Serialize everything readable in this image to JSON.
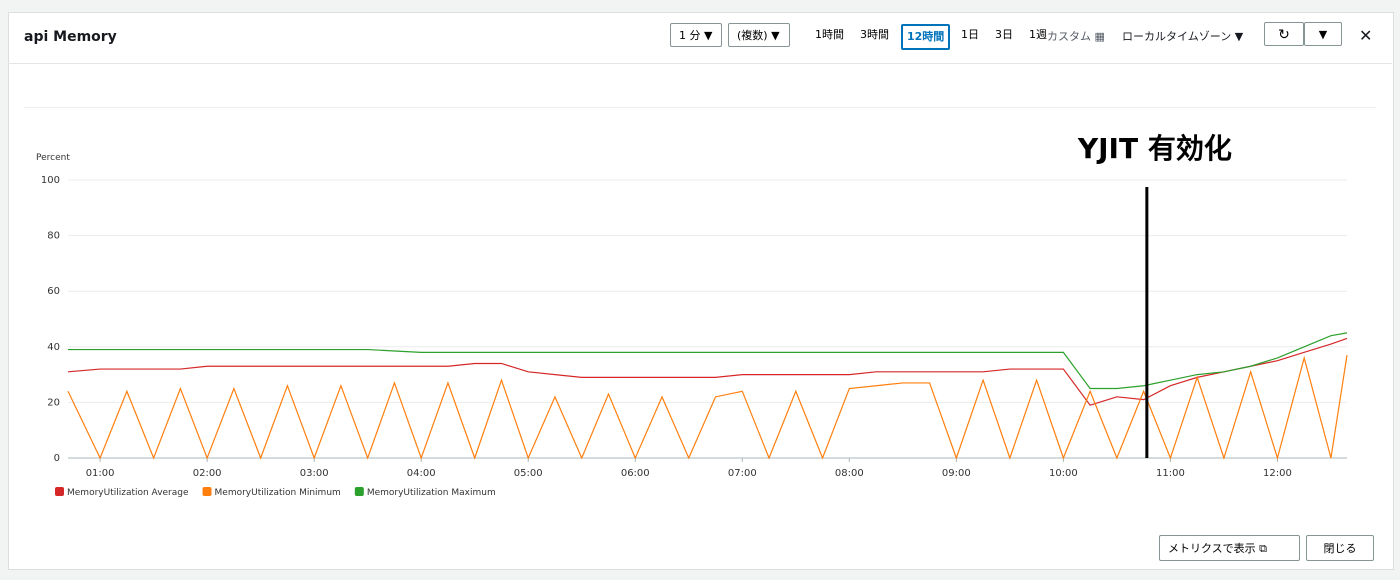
{
  "header": {
    "title": "api Memory"
  },
  "toolbar": {
    "period": "1 分",
    "stat": "(複数)",
    "ranges": [
      "1時間",
      "3時間",
      "12時間",
      "1日",
      "3日",
      "1週"
    ],
    "selected_range": 2,
    "custom": "カスタム",
    "timezone": "ローカルタイムゾーン"
  },
  "chart_data": {
    "type": "line",
    "y_label": "Percent",
    "x": [
      0.7,
      1.0,
      1.25,
      1.5,
      1.75,
      2.0,
      2.25,
      2.5,
      2.75,
      3.0,
      3.25,
      3.5,
      3.75,
      4.0,
      4.25,
      4.5,
      4.75,
      5.0,
      5.25,
      5.5,
      5.75,
      6.0,
      6.25,
      6.5,
      6.75,
      7.0,
      7.25,
      7.5,
      7.75,
      8.0,
      8.25,
      8.5,
      8.75,
      9.0,
      9.25,
      9.5,
      9.75,
      10.0,
      10.25,
      10.5,
      10.75,
      11.0,
      11.25,
      11.5,
      11.75,
      12.0,
      12.25,
      12.5,
      12.65
    ],
    "series": [
      {
        "name": "MemoryUtilization Average",
        "color": "#d62728",
        "values": [
          31,
          32,
          32,
          32,
          32,
          33,
          33,
          33,
          33,
          33,
          33,
          33,
          33,
          33,
          33,
          34,
          34,
          31,
          30,
          29,
          29,
          29,
          29,
          29,
          29,
          30,
          30,
          30,
          30,
          30,
          31,
          31,
          31,
          31,
          31,
          32,
          32,
          32,
          19,
          22,
          21,
          26,
          29,
          31,
          33,
          35,
          38,
          41,
          43
        ]
      },
      {
        "name": "MemoryUtilization Minimum",
        "color": "#ff7f0e",
        "values": [
          24,
          0,
          24,
          0,
          25,
          0,
          25,
          0,
          26,
          0,
          26,
          0,
          27,
          0,
          27,
          0,
          28,
          0,
          22,
          0,
          23,
          0,
          22,
          0,
          22,
          24,
          0,
          24,
          0,
          25,
          26,
          27,
          27,
          0,
          28,
          0,
          28,
          0,
          24,
          0,
          24,
          0,
          29,
          0,
          31,
          0,
          36,
          0,
          37
        ]
      },
      {
        "name": "MemoryUtilization Maximum",
        "color": "#2ca02c",
        "values": [
          39,
          39,
          39,
          39,
          39,
          39,
          39,
          39,
          39,
          39,
          39,
          39,
          38.5,
          38,
          38,
          38,
          38,
          38,
          38,
          38,
          38,
          38,
          38,
          38,
          38,
          38,
          38,
          38,
          38,
          38,
          38,
          38,
          38,
          38,
          38,
          38,
          38,
          38,
          25,
          25,
          26,
          28,
          30,
          31,
          33,
          36,
          40,
          44,
          45
        ]
      }
    ],
    "xlim": [
      0.7,
      12.65
    ],
    "xticks": [
      {
        "value": 1,
        "label": "01:00"
      },
      {
        "value": 2,
        "label": "02:00"
      },
      {
        "value": 3,
        "label": "03:00"
      },
      {
        "value": 4,
        "label": "04:00"
      },
      {
        "value": 5,
        "label": "05:00"
      },
      {
        "value": 6,
        "label": "06:00"
      },
      {
        "value": 7,
        "label": "07:00"
      },
      {
        "value": 8,
        "label": "08:00"
      },
      {
        "value": 9,
        "label": "09:00"
      },
      {
        "value": 10,
        "label": "10:00"
      },
      {
        "value": 11,
        "label": "11:00"
      },
      {
        "value": 12,
        "label": "12:00"
      }
    ],
    "ylim": [
      0,
      100
    ],
    "yticks": [
      0,
      20,
      40,
      60,
      80,
      100
    ],
    "grid": true,
    "annotations": [
      {
        "text": "YJIT 有効化",
        "x": 10.78
      }
    ]
  },
  "footer": {
    "view_in_metrics": "メトリクスで表示",
    "close": "閉じる"
  }
}
